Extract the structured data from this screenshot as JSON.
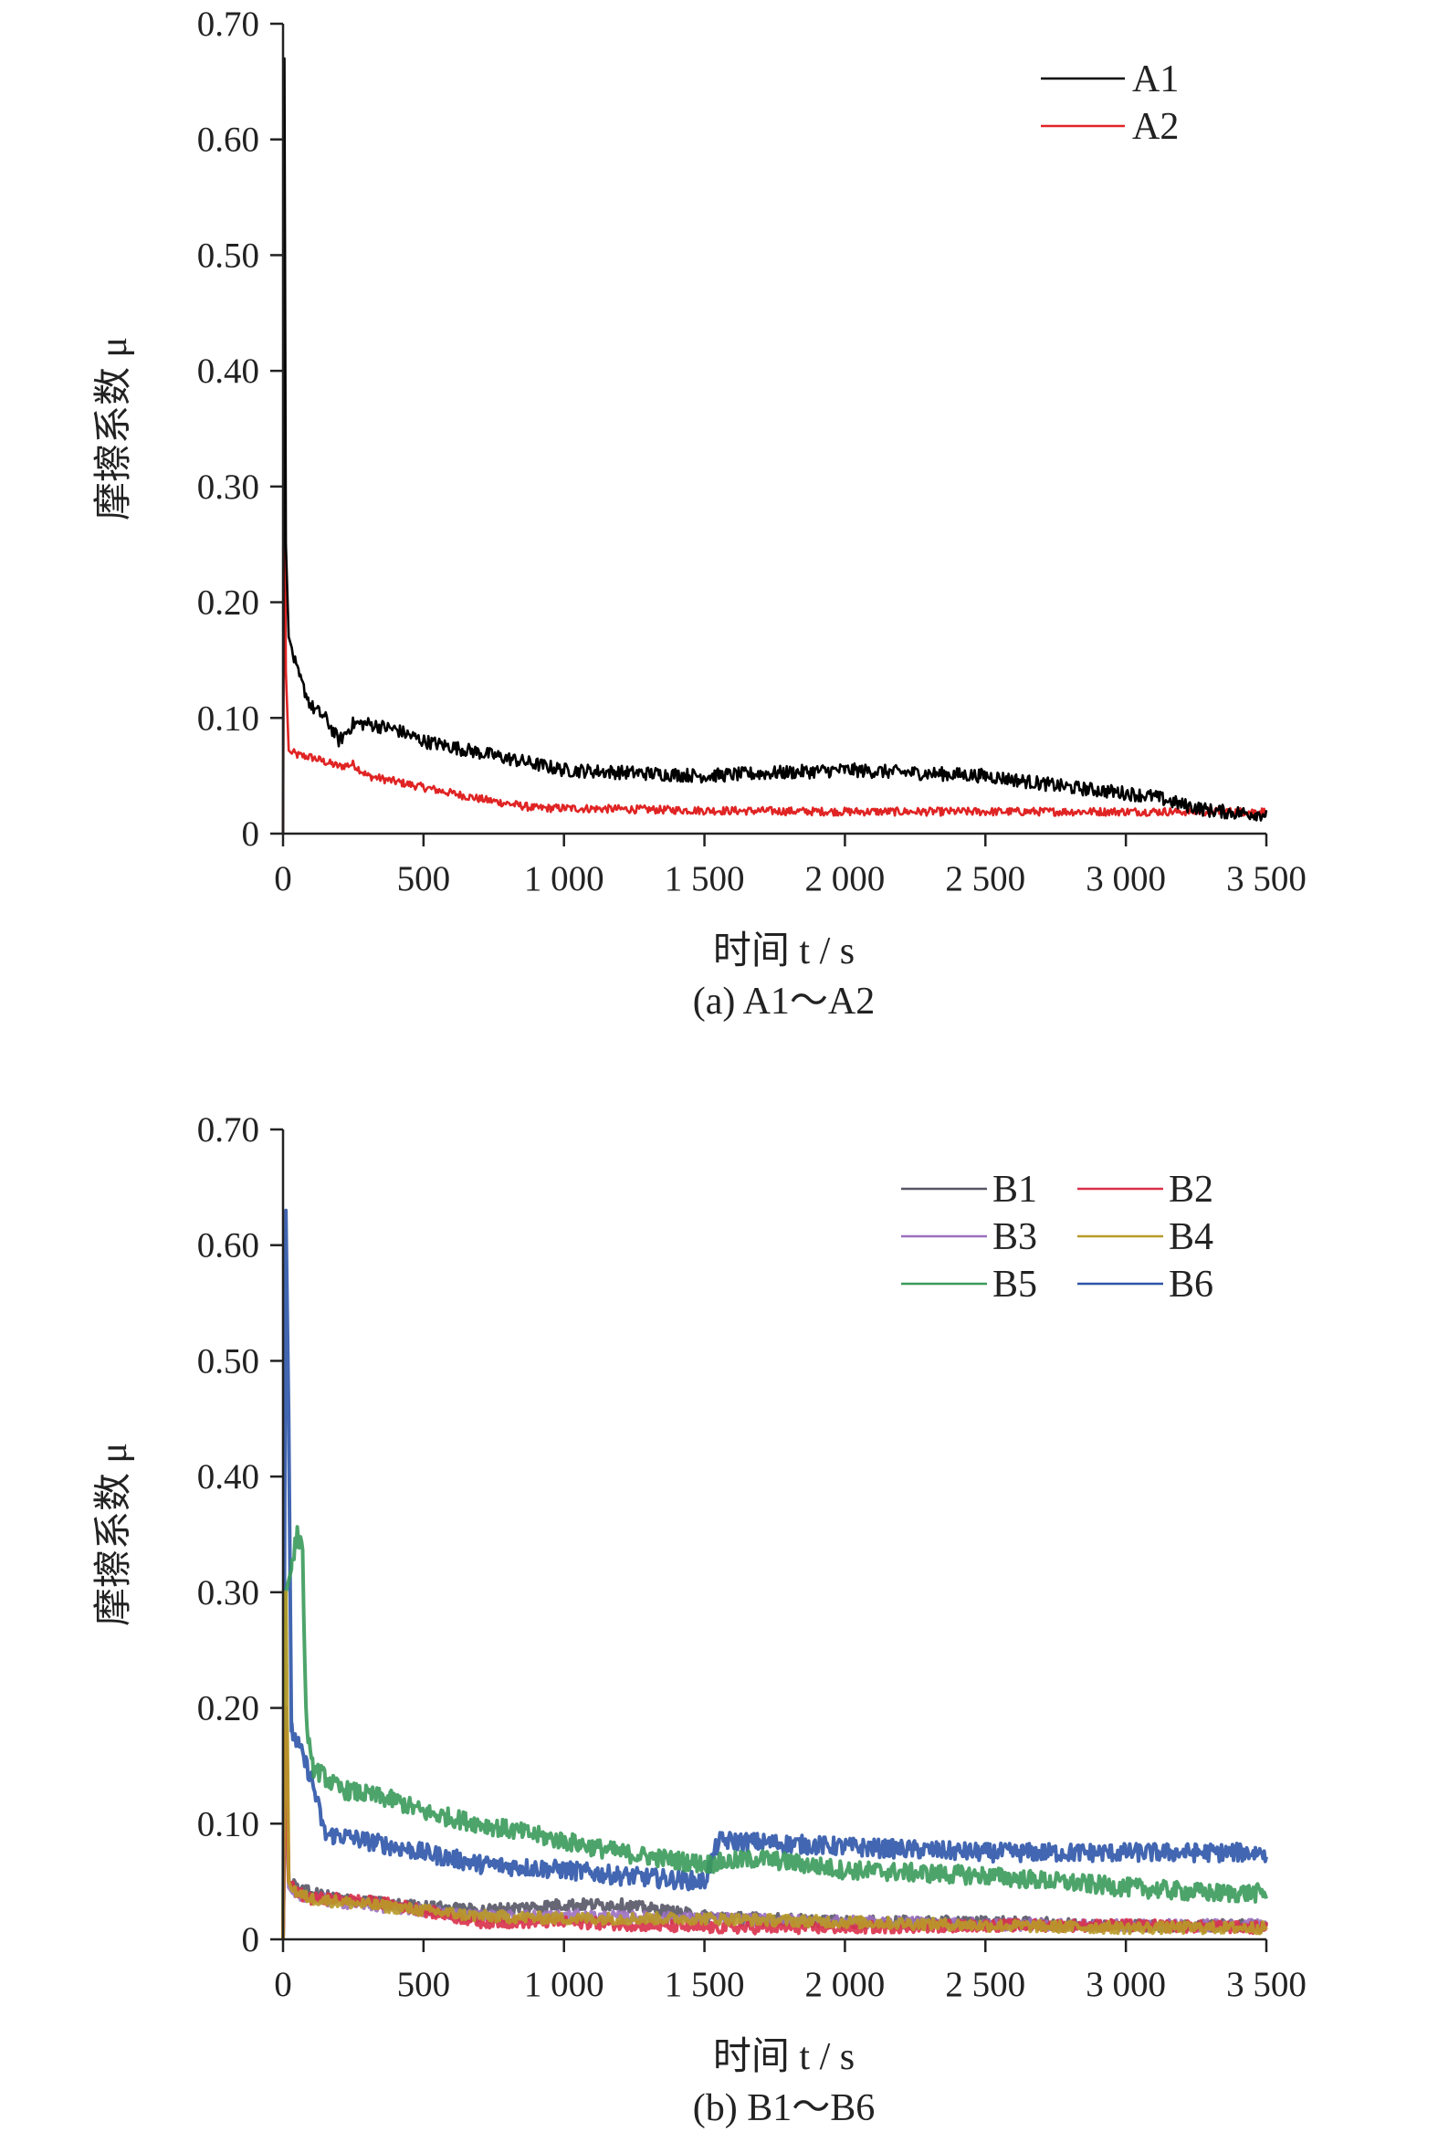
{
  "chart_data": [
    {
      "type": "line",
      "caption": "(a) A1～A2",
      "xlabel": "时间 t / s",
      "ylabel": "摩擦系数 μ",
      "xlim": [
        0,
        3500
      ],
      "ylim": [
        0,
        0.7
      ],
      "xticks": [
        "0",
        "500",
        "1 000",
        "1 500",
        "2 000",
        "2 500",
        "3 000",
        "3 500"
      ],
      "yticks": [
        "0",
        "0.10",
        "0.20",
        "0.30",
        "0.40",
        "0.50",
        "0.60",
        "0.70"
      ],
      "legend_position": "top-right",
      "series": [
        {
          "name": "A1",
          "color": "#000000",
          "x": [
            0,
            5,
            10,
            20,
            50,
            100,
            150,
            200,
            250,
            300,
            400,
            500,
            700,
            1000,
            1500,
            2000,
            2500,
            2800,
            3000,
            3100,
            3200,
            3300,
            3400,
            3500
          ],
          "y": [
            0.0,
            0.67,
            0.25,
            0.17,
            0.14,
            0.11,
            0.1,
            0.08,
            0.095,
            0.095,
            0.09,
            0.08,
            0.07,
            0.055,
            0.05,
            0.055,
            0.05,
            0.04,
            0.035,
            0.032,
            0.025,
            0.02,
            0.018,
            0.017
          ]
        },
        {
          "name": "A2",
          "color": "#e02424",
          "x": [
            0,
            5,
            10,
            20,
            50,
            100,
            150,
            200,
            250,
            300,
            400,
            500,
            700,
            900,
            1000,
            1500,
            2000,
            2500,
            3000,
            3500
          ],
          "y": [
            0.0,
            0.34,
            0.14,
            0.072,
            0.068,
            0.066,
            0.062,
            0.058,
            0.06,
            0.05,
            0.045,
            0.04,
            0.03,
            0.022,
            0.022,
            0.02,
            0.019,
            0.019,
            0.019,
            0.019
          ]
        }
      ]
    },
    {
      "type": "line",
      "caption": "(b) B1～B6",
      "xlabel": "时间 t / s",
      "ylabel": "摩擦系数 μ",
      "xlim": [
        0,
        3500
      ],
      "ylim": [
        0,
        0.7
      ],
      "xticks": [
        "0",
        "500",
        "1 000",
        "1 500",
        "2 000",
        "2 500",
        "3 000",
        "3 500"
      ],
      "yticks": [
        "0",
        "0.10",
        "0.20",
        "0.30",
        "0.40",
        "0.50",
        "0.60",
        "0.70"
      ],
      "legend_position": "top-right",
      "series": [
        {
          "name": "B1",
          "color": "#555566",
          "x": [
            0,
            10,
            20,
            50,
            100,
            200,
            400,
            700,
            1000,
            1200,
            1500,
            2000,
            2500,
            3000,
            3500
          ],
          "y": [
            0.0,
            0.2,
            0.05,
            0.045,
            0.04,
            0.035,
            0.03,
            0.025,
            0.03,
            0.03,
            0.02,
            0.015,
            0.015,
            0.012,
            0.012
          ]
        },
        {
          "name": "B2",
          "color": "#d9304a",
          "x": [
            0,
            10,
            20,
            50,
            100,
            200,
            400,
            700,
            1000,
            1500,
            2000,
            2500,
            3000,
            3500
          ],
          "y": [
            0.0,
            0.18,
            0.05,
            0.04,
            0.035,
            0.035,
            0.03,
            0.015,
            0.015,
            0.01,
            0.01,
            0.012,
            0.012,
            0.01
          ]
        },
        {
          "name": "B3",
          "color": "#9b6fc0",
          "x": [
            0,
            10,
            20,
            50,
            100,
            300,
            700,
            1000,
            1500,
            2000,
            2500,
            3000,
            3500
          ],
          "y": [
            0.0,
            0.15,
            0.045,
            0.04,
            0.035,
            0.03,
            0.02,
            0.02,
            0.018,
            0.015,
            0.013,
            0.012,
            0.012
          ]
        },
        {
          "name": "B4",
          "color": "#b89a28",
          "x": [
            0,
            10,
            20,
            50,
            100,
            300,
            700,
            1000,
            1500,
            2000,
            2500,
            3000,
            3500
          ],
          "y": [
            0.0,
            0.3,
            0.05,
            0.04,
            0.035,
            0.03,
            0.02,
            0.018,
            0.018,
            0.015,
            0.012,
            0.01,
            0.01
          ]
        },
        {
          "name": "B5",
          "color": "#3a9a5a",
          "x": [
            0,
            10,
            30,
            50,
            70,
            80,
            100,
            150,
            200,
            300,
            400,
            500,
            700,
            900,
            1000,
            1200,
            1500,
            1700,
            2000,
            2500,
            3000,
            3300,
            3500
          ],
          "y": [
            0.0,
            0.3,
            0.32,
            0.35,
            0.34,
            0.2,
            0.15,
            0.14,
            0.13,
            0.125,
            0.12,
            0.11,
            0.1,
            0.09,
            0.085,
            0.075,
            0.065,
            0.07,
            0.06,
            0.055,
            0.045,
            0.04,
            0.04
          ]
        },
        {
          "name": "B6",
          "color": "#2d55a8",
          "x": [
            0,
            10,
            20,
            30,
            50,
            100,
            150,
            200,
            300,
            500,
            700,
            1000,
            1200,
            1500,
            1550,
            1600,
            2000,
            2500,
            3000,
            3500
          ],
          "y": [
            0.0,
            0.63,
            0.45,
            0.18,
            0.17,
            0.14,
            0.09,
            0.09,
            0.085,
            0.075,
            0.065,
            0.06,
            0.055,
            0.05,
            0.085,
            0.085,
            0.08,
            0.075,
            0.075,
            0.075
          ]
        }
      ]
    }
  ]
}
